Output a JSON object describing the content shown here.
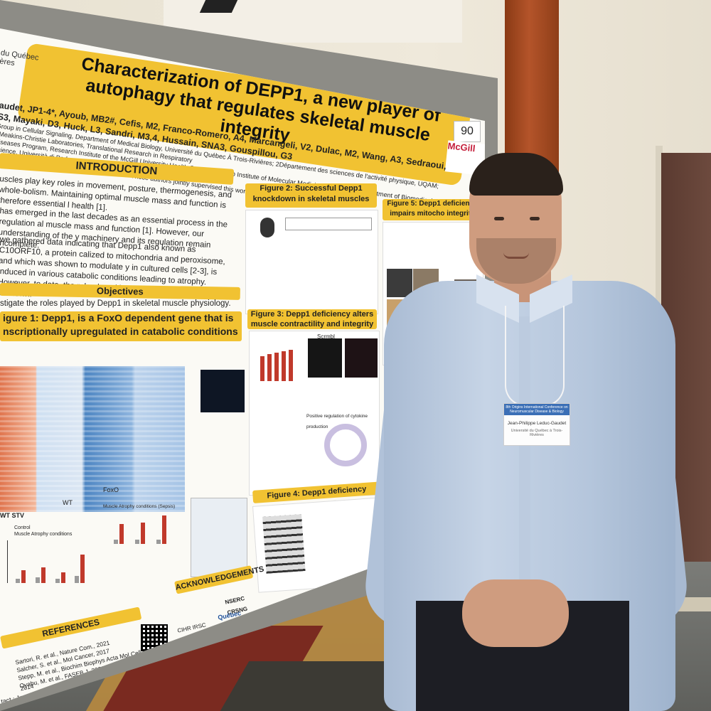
{
  "poster": {
    "institution_top": "du Québec",
    "institution_bottom": "ères",
    "title": "Characterization of DEPP1, a new player of autophagy that regulates skeletal muscle integrity",
    "board_number": "90",
    "mcgill_logo": "McGill",
    "authors_line1": "audet, JP1-4*, Ayoub, MB2#, Cefis, M2, Franco-Romero, A4, Marcangeli, V2, Dulac, M2, Wang, A3, Sedraoui, S3, Mayaki, D3, Huck, L3, Sandri, M3,4, Hussain, SNA3, Gouspillou, G3",
    "authors_line2": "Group in Cellular Signaling, Department of Medical Biology, Université du Québec À Trois-Rivières; 2Département des sciences de l'activité physique, UQAM; 3Meakins-Christie Laboratories, Translational Research in Respiratory",
    "authors_line3": "Diseases Program, Research Institute of the McGill University Health Centre; 4Veneto Institute of Molecular Medicine (VIMM) and Department of Biomedical Science, Università di Padova",
    "authors_line4": "#These authors contributed equally to this work. *These authors jointly supervised this work.",
    "introduction_heading": "INTRODUCTION",
    "intro_p1": "uscles play key roles in movement, posture, thermogenesis, and whole-bolism. Maintaining optimal muscle mass and function is therefore essential l health [1].",
    "intro_p2": "has emerged in the last decades as an essential process in the regulation al muscle mass and function [1]. However, our understanding of the y machinery and its regulation remain incomplete.",
    "intro_p3": "we gathered data indicating that Depp1 also known as C10ORF10, a protein calized to mitochondria and peroxisome, and which was shown to modulate y in cultured cells [2-3], is induced in various catabolic conditions leading to atrophy. However, to date, the role played by Depp1 in skeletal muscles unknown.",
    "objectives_heading": "Objectives",
    "objectives_text": "stigate the roles played by Depp1 in skeletal muscle physiology.",
    "fig1_heading": "igure 1: Depp1, is a FoxO dependent gene that is nscriptionally upregulated in catabolic conditions",
    "fig2_heading": "Figure 2: Successful Depp1 knockdown in skeletal muscles",
    "fig3_heading": "Figure 3: Depp1 deficiency alters muscle contractility and integrity",
    "fig4_heading": "Figure 4: Depp1 deficiency impairs autophagy",
    "fig5_heading": "Figure 5: Depp1 deficiency impairs mitocho integrity",
    "heatmap_label_wt": "WT",
    "heatmap_label_foxo": "FoxO",
    "heatmap_label_stv": "WT STV",
    "legend_control": "Control",
    "legend_atrophy": "Muscle Atrophy conditions",
    "legend_atrophy_sepsis": "Muscle Atrophy conditions (Sepsis)",
    "scrmbl_label": "Scrmbl",
    "cytokine_label": "Positive regulation of cytokine production",
    "acknowledgements_heading": "ACKNOWLEDGEMENTS",
    "references_heading": "REFERENCES",
    "ref1": "Sartori, R. et al., Nature Com., 2021",
    "ref2": "Salcher, S. et al., Mol Cancer, 2017",
    "ref3": "Stepp, M. et al., Biochim Biophys Acta Mol Cell Res., 2014",
    "ref4": "Oyabu, M. et al., FASEB J, 2022",
    "contact": "tact : Jean-Philippe.Leduc-Gaudet@uqtr.ca",
    "sponsor_nserc": "NSERC CRSNG",
    "sponsor_cihr": "CIHR IRSC",
    "sponsor_quebec": "Québec"
  },
  "badge": {
    "event": "8th Origins International Conference on Neuromuscular Disease & Biology",
    "name": "Jean-Philippe Leduc-Gaudet",
    "affiliation": "Université du Québec à Trois-Rivières"
  },
  "colors": {
    "accent_yellow": "#f1c232",
    "bar_red": "#c0392b",
    "pillar_orange": "#b4542a",
    "shirt_blue": "#c6d4e6"
  }
}
